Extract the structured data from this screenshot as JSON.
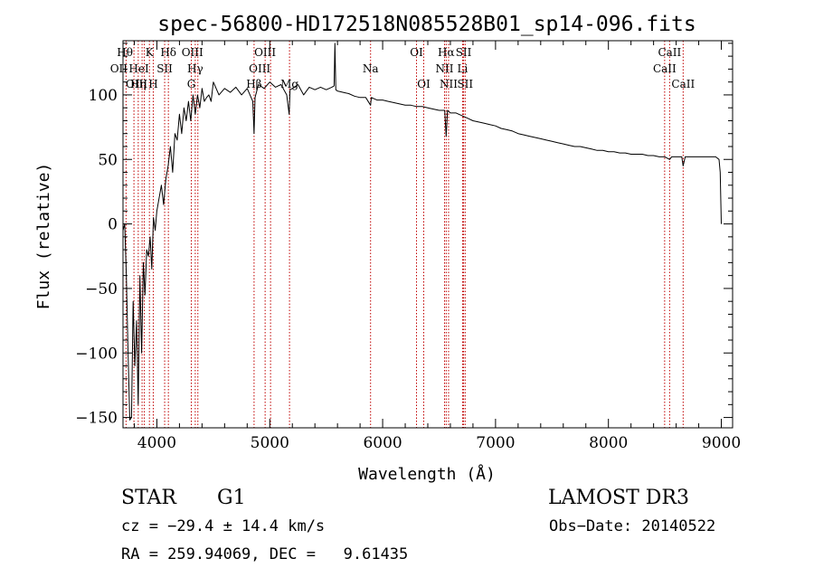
{
  "chart_data": {
    "type": "line",
    "title": "spec-56800-HD172518N085528B01_sp14-096.fits",
    "xlabel": "Wavelength (Å)",
    "ylabel": "Flux (relative)",
    "xlim": [
      3700,
      9100
    ],
    "ylim": [
      -158,
      142
    ],
    "xticks": [
      4000,
      5000,
      6000,
      7000,
      8000,
      9000
    ],
    "yticks": [
      -150,
      -100,
      -50,
      0,
      50,
      100
    ],
    "xtick_labels": [
      "4000",
      "5000",
      "6000",
      "7000",
      "8000",
      "9000"
    ],
    "ytick_labels": [
      "−150",
      "−100",
      "−50",
      "0",
      "50",
      "100"
    ],
    "grid": false,
    "series": [
      {
        "color": "#000000",
        "x": [
          3700,
          3715,
          3730,
          3745,
          3760,
          3775,
          3790,
          3805,
          3820,
          3835,
          3850,
          3865,
          3880,
          3895,
          3910,
          3925,
          3940,
          3955,
          3970,
          3985,
          4000,
          4020,
          4040,
          4060,
          4080,
          4100,
          4120,
          4140,
          4160,
          4180,
          4200,
          4220,
          4240,
          4260,
          4280,
          4300,
          4320,
          4340,
          4360,
          4380,
          4400,
          4420,
          4440,
          4460,
          4480,
          4500,
          4550,
          4600,
          4650,
          4700,
          4750,
          4800,
          4850,
          4861,
          4870,
          4900,
          4950,
          5000,
          5050,
          5100,
          5150,
          5172,
          5180,
          5200,
          5250,
          5300,
          5350,
          5400,
          5450,
          5500,
          5550,
          5570,
          5577,
          5585,
          5600,
          5650,
          5700,
          5750,
          5800,
          5850,
          5893,
          5900,
          5950,
          6000,
          6050,
          6100,
          6150,
          6200,
          6250,
          6300,
          6350,
          6400,
          6450,
          6500,
          6550,
          6563,
          6575,
          6600,
          6650,
          6700,
          6750,
          6800,
          6850,
          6900,
          6950,
          7000,
          7050,
          7100,
          7150,
          7200,
          7250,
          7300,
          7350,
          7400,
          7450,
          7500,
          7550,
          7600,
          7650,
          7700,
          7750,
          7800,
          7850,
          7900,
          7950,
          8000,
          8050,
          8100,
          8150,
          8200,
          8250,
          8300,
          8350,
          8400,
          8450,
          8500,
          8542,
          8560,
          8600,
          8650,
          8662,
          8680,
          8700,
          8750,
          8800,
          8850,
          8900,
          8950,
          8980,
          8990,
          9000
        ],
        "y": [
          -5,
          0,
          -40,
          -100,
          -152,
          -150,
          -60,
          -110,
          -75,
          -140,
          -40,
          -100,
          -30,
          -55,
          -20,
          -25,
          -10,
          -35,
          5,
          -5,
          10,
          20,
          30,
          15,
          35,
          45,
          60,
          40,
          70,
          65,
          85,
          70,
          90,
          80,
          95,
          80,
          100,
          85,
          100,
          90,
          105,
          95,
          98,
          100,
          95,
          110,
          100,
          105,
          102,
          106,
          100,
          105,
          95,
          70,
          98,
          108,
          105,
          110,
          106,
          108,
          100,
          85,
          104,
          105,
          108,
          100,
          106,
          104,
          106,
          104,
          106,
          107,
          140,
          104,
          103,
          102,
          101,
          99,
          98,
          98,
          92,
          98,
          96,
          96,
          95,
          94,
          93,
          92,
          92,
          91,
          91,
          90,
          89,
          88,
          88,
          68,
          88,
          86,
          86,
          84,
          82,
          80,
          79,
          78,
          77,
          76,
          74,
          73,
          72,
          70,
          69,
          68,
          67,
          66,
          65,
          64,
          63,
          62,
          61,
          60,
          60,
          59,
          58,
          57,
          57,
          56,
          56,
          55,
          55,
          54,
          54,
          54,
          53,
          53,
          52,
          52,
          50,
          52,
          52,
          52,
          45,
          52,
          52,
          52,
          52,
          52,
          52,
          52,
          50,
          40,
          0
        ]
      }
    ],
    "lines": [
      {
        "label": "Hθ",
        "x": 3797
      },
      {
        "label": "OII",
        "x": 3727
      },
      {
        "label": "OIII",
        "x": 3869
      },
      {
        "label": "K",
        "x": 3934
      },
      {
        "label": "HeI",
        "x": 3889
      },
      {
        "label": "Hη",
        "x": 3835
      },
      {
        "label": "SII",
        "x": 4069
      },
      {
        "label": "H",
        "x": 3968
      },
      {
        "label": "Hδ",
        "x": 4102
      },
      {
        "label": "OIII",
        "x": 4363
      },
      {
        "label": "Hγ",
        "x": 4340
      },
      {
        "label": "G",
        "x": 4305
      },
      {
        "label": "Hβ",
        "x": 4861
      },
      {
        "label": "OIII",
        "x": 5007
      },
      {
        "label": "OIII",
        "x": 4959
      },
      {
        "label": "Mg",
        "x": 5175
      },
      {
        "label": "Na",
        "x": 5893
      },
      {
        "label": "OI",
        "x": 6300
      },
      {
        "label": "OI",
        "x": 6364
      },
      {
        "label": "Hα",
        "x": 6563
      },
      {
        "label": "NII",
        "x": 6548
      },
      {
        "label": "NII",
        "x": 6584
      },
      {
        "label": "SII",
        "x": 6717
      },
      {
        "label": "Li",
        "x": 6708
      },
      {
        "label": "SII",
        "x": 6731
      },
      {
        "label": "CaII",
        "x": 8542
      },
      {
        "label": "CaII",
        "x": 8498
      },
      {
        "label": "CaII",
        "x": 8662
      }
    ]
  },
  "info": {
    "object": "STAR",
    "subclass": "G1",
    "survey": "LAMOST DR3",
    "cz": "cz = −29.4 ± 14.4 km/s",
    "obs_date": "Obs−Date: 20140522",
    "coords": "RA = 259.94069, DEC =   9.61435"
  },
  "colors": {
    "axes": "#000000",
    "line_marker": "#c00000",
    "background": "#ffffff"
  }
}
